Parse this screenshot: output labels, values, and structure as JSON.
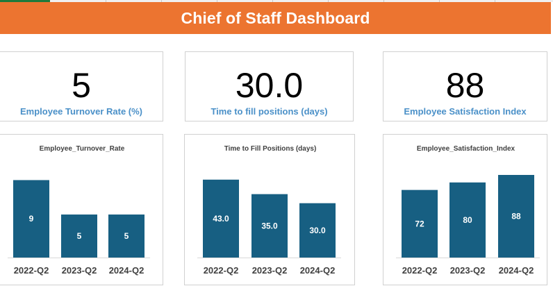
{
  "dashboard": {
    "title": "Chief of Staff Dashboard",
    "accent_color": "#ec7430",
    "bar_color": "#175f82",
    "kpi_label_color": "#4a90c8"
  },
  "kpis": [
    {
      "value": "5",
      "label": "Employee Turnover Rate (%)"
    },
    {
      "value": "30.0",
      "label": "Time to fill positions (days)"
    },
    {
      "value": "88",
      "label": "Employee Satisfaction Index"
    }
  ],
  "chart_data": [
    {
      "type": "bar",
      "title": "Employee_Turnover_Rate",
      "categories": [
        "2022-Q2",
        "2023-Q2",
        "2024-Q2"
      ],
      "values": [
        9,
        5,
        5
      ],
      "value_labels": [
        "9",
        "5",
        "5"
      ],
      "ylim": [
        0,
        9.6
      ],
      "grid": false,
      "legend": "none"
    },
    {
      "type": "bar",
      "title": "Time to Fill Positions (days)",
      "categories": [
        "2022-Q2",
        "2023-Q2",
        "2024-Q2"
      ],
      "values": [
        43.0,
        35.0,
        30.0
      ],
      "value_labels": [
        "43.0",
        "35.0",
        "30.0"
      ],
      "ylim": [
        0,
        45.6
      ],
      "grid": false,
      "legend": "none"
    },
    {
      "type": "bar",
      "title": "Employee_Satisfaction_Index",
      "categories": [
        "2022-Q2",
        "2023-Q2",
        "2024-Q2"
      ],
      "values": [
        72,
        80,
        88
      ],
      "value_labels": [
        "72",
        "80",
        "88"
      ],
      "ylim": [
        0,
        88
      ],
      "grid": false,
      "legend": "none"
    }
  ]
}
